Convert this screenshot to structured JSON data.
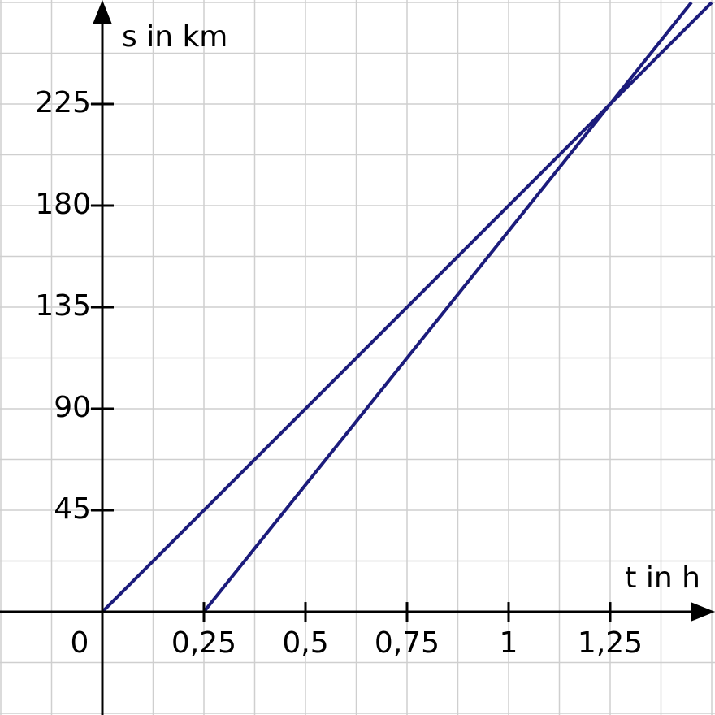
{
  "chart_data": {
    "type": "line",
    "x_label": "t in h",
    "y_label": "s in km",
    "xlim": [
      -0.252,
      1.508
    ],
    "ylim": [
      -45.7,
      271.1
    ],
    "xticks": [
      0,
      {
        "value": 0.25,
        "label": "0,25"
      },
      {
        "value": 0.5,
        "label": "0,5"
      },
      {
        "value": 0.75,
        "label": "0,75"
      },
      1,
      {
        "value": 1.25,
        "label": "1,25"
      }
    ],
    "yticks": [
      45,
      90,
      135,
      180,
      225
    ],
    "grid": true,
    "xgrid": [
      -0.25,
      -0.125,
      0,
      0.125,
      0.25,
      0.375,
      0.5,
      0.625,
      0.75,
      0.875,
      1,
      1.125,
      1.25,
      1.375,
      1.5
    ],
    "ygrid": [
      -45,
      -22.5,
      0,
      22.5,
      45,
      67.5,
      90,
      112.5,
      135,
      157.5,
      180,
      202.5,
      225,
      247.5,
      270
    ],
    "series": [
      {
        "color": "#1c1c7c",
        "x": [
          0,
          1.5
        ],
        "values": [
          0,
          270
        ]
      },
      {
        "color": "#1c1c7c",
        "x": [
          0.25,
          1.45
        ],
        "values": [
          0,
          270
        ]
      }
    ]
  }
}
